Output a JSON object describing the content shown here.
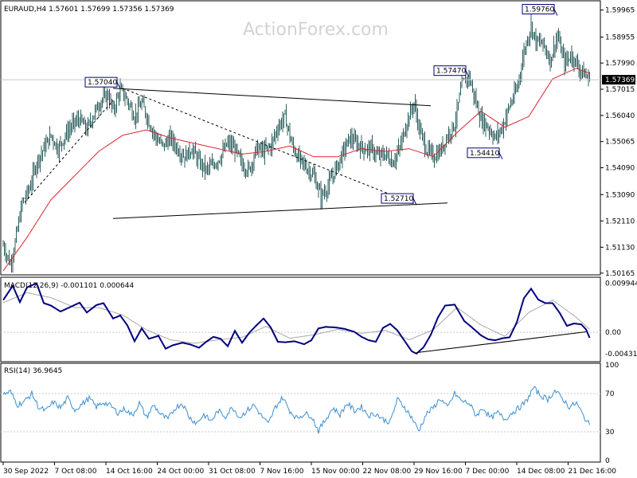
{
  "watermark": "ActionForex.com",
  "colors": {
    "candle": "#2f5f5f",
    "ma": "#d8262f",
    "macd": "#00007f",
    "signal": "#a9a9a9",
    "rsi": "#3b8fd0",
    "annotation": "#00007f",
    "line": "#000000",
    "grid": "#c8c8c8"
  },
  "chart_data": [
    {
      "type": "candlestick",
      "title": "EURAUD,H4",
      "ohlc_header": "1.57601 1.57699 1.57356 1.57369",
      "current_price_label": "1.57369",
      "current_price": 1.57369,
      "ylim": [
        1.5016,
        1.6025
      ],
      "y_ticks": [
        "1.59965",
        "1.58955",
        "1.57990",
        "1.57015",
        "1.56040",
        "1.55065",
        "1.54090",
        "1.53090",
        "1.52110",
        "1.51130",
        "1.50165"
      ],
      "x_ticks": [
        "30 Sep 2022",
        "7 Oct 08:00",
        "14 Oct 16:00",
        "24 Oct 00:00",
        "31 Oct 08:00",
        "7 Nov 16:00",
        "15 Nov 00:00",
        "22 Nov 08:00",
        "29 Nov 16:00",
        "7 Dec 00:00",
        "14 Dec 08:00",
        "21 Dec 16:00"
      ],
      "close_path": [
        [
          0,
          1.512
        ],
        [
          6,
          1.505
        ],
        [
          10,
          1.513
        ],
        [
          16,
          1.528
        ],
        [
          22,
          1.533
        ],
        [
          28,
          1.543
        ],
        [
          34,
          1.548
        ],
        [
          40,
          1.553
        ],
        [
          46,
          1.548
        ],
        [
          52,
          1.553
        ],
        [
          58,
          1.557
        ],
        [
          64,
          1.559
        ],
        [
          70,
          1.555
        ],
        [
          76,
          1.561
        ],
        [
          82,
          1.566
        ],
        [
          88,
          1.568
        ],
        [
          92,
          1.562
        ],
        [
          98,
          1.57
        ],
        [
          104,
          1.566
        ],
        [
          110,
          1.56
        ],
        [
          116,
          1.565
        ],
        [
          122,
          1.558
        ],
        [
          128,
          1.552
        ],
        [
          134,
          1.549
        ],
        [
          140,
          1.552
        ],
        [
          146,
          1.548
        ],
        [
          152,
          1.545
        ],
        [
          158,
          1.548
        ],
        [
          164,
          1.543
        ],
        [
          170,
          1.54
        ],
        [
          176,
          1.542
        ],
        [
          182,
          1.545
        ],
        [
          188,
          1.55
        ],
        [
          194,
          1.548
        ],
        [
          200,
          1.542
        ],
        [
          206,
          1.54
        ],
        [
          212,
          1.548
        ],
        [
          218,
          1.547
        ],
        [
          224,
          1.549
        ],
        [
          230,
          1.556
        ],
        [
          236,
          1.56
        ],
        [
          242,
          1.549
        ],
        [
          248,
          1.544
        ],
        [
          254,
          1.541
        ],
        [
          260,
          1.538
        ],
        [
          266,
          1.53
        ],
        [
          272,
          1.534
        ],
        [
          278,
          1.54
        ],
        [
          284,
          1.546
        ],
        [
          290,
          1.552
        ],
        [
          296,
          1.55
        ],
        [
          302,
          1.548
        ],
        [
          308,
          1.548
        ],
        [
          314,
          1.545
        ],
        [
          320,
          1.546
        ],
        [
          326,
          1.543
        ],
        [
          332,
          1.548
        ],
        [
          338,
          1.558
        ],
        [
          344,
          1.565
        ],
        [
          348,
          1.556
        ],
        [
          354,
          1.548
        ],
        [
          360,
          1.545
        ],
        [
          366,
          1.547
        ],
        [
          372,
          1.553
        ],
        [
          378,
          1.557
        ],
        [
          384,
          1.572
        ],
        [
          390,
          1.575
        ],
        [
          394,
          1.568
        ],
        [
          400,
          1.559
        ],
        [
          406,
          1.556
        ],
        [
          412,
          1.552
        ],
        [
          418,
          1.556
        ],
        [
          424,
          1.564
        ],
        [
          430,
          1.57
        ],
        [
          436,
          1.584
        ],
        [
          442,
          1.594
        ],
        [
          446,
          1.588
        ],
        [
          452,
          1.587
        ],
        [
          458,
          1.581
        ],
        [
          464,
          1.59
        ],
        [
          470,
          1.58
        ],
        [
          476,
          1.583
        ],
        [
          482,
          1.578
        ],
        [
          488,
          1.575
        ],
        [
          491,
          1.5737
        ]
      ],
      "ma_path": [
        [
          0,
          1.5025
        ],
        [
          20,
          1.515
        ],
        [
          40,
          1.529
        ],
        [
          60,
          1.538
        ],
        [
          80,
          1.547
        ],
        [
          100,
          1.553
        ],
        [
          120,
          1.555
        ],
        [
          140,
          1.552
        ],
        [
          160,
          1.55
        ],
        [
          180,
          1.548
        ],
        [
          200,
          1.546
        ],
        [
          220,
          1.547
        ],
        [
          240,
          1.549
        ],
        [
          260,
          1.545
        ],
        [
          280,
          1.545
        ],
        [
          300,
          1.548
        ],
        [
          320,
          1.547
        ],
        [
          340,
          1.548
        ],
        [
          360,
          1.545
        ],
        [
          380,
          1.554
        ],
        [
          400,
          1.562
        ],
        [
          420,
          1.556
        ],
        [
          440,
          1.56
        ],
        [
          460,
          1.574
        ],
        [
          480,
          1.578
        ],
        [
          491,
          1.576
        ]
      ],
      "annotations": [
        {
          "label": "1.57040",
          "bar": 98,
          "price": 1.5704
        },
        {
          "label": "1.52710",
          "bar": 346,
          "price": 1.5271
        },
        {
          "label": "1.57470",
          "bar": 390,
          "price": 1.5747
        },
        {
          "label": "1.54410",
          "bar": 418,
          "price": 1.5441
        },
        {
          "label": "1.59760",
          "bar": 464,
          "price": 1.5976
        }
      ],
      "trendlines": [
        {
          "style": "solid",
          "points": [
            [
              92,
              1.5705
            ],
            [
              358,
              1.564
            ]
          ]
        },
        {
          "style": "solid",
          "points": [
            [
              92,
              1.522
            ],
            [
              372,
              1.5278
            ]
          ]
        },
        {
          "style": "dashed",
          "points": [
            [
              100,
              1.5705
            ],
            [
              346,
              1.5271
            ]
          ]
        },
        {
          "style": "dashed",
          "points": [
            [
              18,
              1.528
            ],
            [
              92,
              1.566
            ]
          ]
        }
      ]
    },
    {
      "type": "line",
      "title": "MACD(12,26,9) -0.001101 0.000644",
      "ylim": [
        -0.0056,
        0.0108
      ],
      "y_ticks": [
        "0.009944",
        "0.00",
        "-0.004313"
      ],
      "macd_path": [
        [
          0,
          0.0065
        ],
        [
          8,
          0.0094
        ],
        [
          14,
          0.0061
        ],
        [
          20,
          0.0091
        ],
        [
          28,
          0.0099
        ],
        [
          34,
          0.0059
        ],
        [
          40,
          0.0054
        ],
        [
          48,
          0.0042
        ],
        [
          56,
          0.0051
        ],
        [
          64,
          0.006
        ],
        [
          70,
          0.004
        ],
        [
          78,
          0.0055
        ],
        [
          84,
          0.0059
        ],
        [
          92,
          0.0028
        ],
        [
          98,
          0.0034
        ],
        [
          104,
          0.0014
        ],
        [
          110,
          -0.0018
        ],
        [
          116,
          0.0008
        ],
        [
          122,
          -0.0013
        ],
        [
          130,
          -0.0007
        ],
        [
          136,
          -0.0033
        ],
        [
          142,
          -0.0026
        ],
        [
          150,
          -0.0021
        ],
        [
          156,
          -0.0024
        ],
        [
          164,
          -0.0031
        ],
        [
          170,
          -0.0019
        ],
        [
          176,
          -0.0009
        ],
        [
          182,
          -0.0013
        ],
        [
          188,
          -0.0028
        ],
        [
          194,
          0.0003
        ],
        [
          200,
          -0.0021
        ],
        [
          206,
          -0.0001
        ],
        [
          212,
          0.0014
        ],
        [
          218,
          0.0028
        ],
        [
          224,
          0.001
        ],
        [
          230,
          -0.0019
        ],
        [
          236,
          -0.002
        ],
        [
          244,
          -0.0018
        ],
        [
          252,
          -0.0024
        ],
        [
          258,
          -0.0016
        ],
        [
          264,
          0.0008
        ],
        [
          270,
          0.0011
        ],
        [
          278,
          0.001
        ],
        [
          286,
          0.0007
        ],
        [
          294,
          0.0001
        ],
        [
          300,
          -0.0009
        ],
        [
          306,
          -0.0016
        ],
        [
          312,
          -0.0019
        ],
        [
          318,
          0.0009
        ],
        [
          324,
          0.0017
        ],
        [
          330,
          0.0004
        ],
        [
          336,
          -0.0017
        ],
        [
          342,
          -0.0038
        ],
        [
          346,
          -0.0043
        ],
        [
          352,
          -0.003
        ],
        [
          358,
          -0.0005
        ],
        [
          364,
          0.003
        ],
        [
          370,
          0.0054
        ],
        [
          378,
          0.0056
        ],
        [
          386,
          0.0023
        ],
        [
          392,
          0.0011
        ],
        [
          400,
          -0.0006
        ],
        [
          406,
          -0.0014
        ],
        [
          412,
          -0.0016
        ],
        [
          418,
          -0.0012
        ],
        [
          424,
          -0.001
        ],
        [
          430,
          0.002
        ],
        [
          436,
          0.0069
        ],
        [
          442,
          0.0088
        ],
        [
          448,
          0.0066
        ],
        [
          454,
          0.0059
        ],
        [
          460,
          0.0059
        ],
        [
          466,
          0.0039
        ],
        [
          472,
          0.0013
        ],
        [
          478,
          0.0018
        ],
        [
          484,
          0.0016
        ],
        [
          488,
          0.0006
        ],
        [
          491,
          -0.0011
        ]
      ],
      "signal_path": [
        [
          0,
          0.006
        ],
        [
          20,
          0.008
        ],
        [
          40,
          0.007
        ],
        [
          60,
          0.005
        ],
        [
          80,
          0.005
        ],
        [
          100,
          0.0035
        ],
        [
          120,
          0.0005
        ],
        [
          140,
          -0.0015
        ],
        [
          160,
          -0.0022
        ],
        [
          180,
          -0.0015
        ],
        [
          200,
          -0.001
        ],
        [
          220,
          0.0012
        ],
        [
          240,
          -0.0012
        ],
        [
          260,
          -0.0005
        ],
        [
          280,
          0.0006
        ],
        [
          300,
          -0.0002
        ],
        [
          320,
          0.0004
        ],
        [
          340,
          -0.0015
        ],
        [
          360,
          0.0005
        ],
        [
          380,
          0.005
        ],
        [
          400,
          0.0015
        ],
        [
          420,
          -0.0008
        ],
        [
          440,
          0.004
        ],
        [
          460,
          0.0065
        ],
        [
          480,
          0.003
        ],
        [
          491,
          0.0006
        ]
      ],
      "trendlines": [
        {
          "style": "solid",
          "points": [
            [
              346,
              -0.0041
            ],
            [
              488,
              0.0001
            ]
          ]
        }
      ]
    },
    {
      "type": "line",
      "title": "RSI(14) 36.9645",
      "ylim": [
        0,
        100
      ],
      "y_ticks": [
        "100",
        "70",
        "30",
        "0"
      ],
      "levels": [
        70,
        30
      ],
      "rsi_path": [
        [
          0,
          69
        ],
        [
          6,
          72
        ],
        [
          12,
          58
        ],
        [
          18,
          62
        ],
        [
          24,
          70
        ],
        [
          30,
          55
        ],
        [
          36,
          52
        ],
        [
          42,
          61
        ],
        [
          48,
          55
        ],
        [
          54,
          65
        ],
        [
          60,
          53
        ],
        [
          66,
          59
        ],
        [
          72,
          65
        ],
        [
          78,
          56
        ],
        [
          84,
          61
        ],
        [
          90,
          57
        ],
        [
          96,
          50
        ],
        [
          102,
          54
        ],
        [
          108,
          47
        ],
        [
          114,
          60
        ],
        [
          120,
          45
        ],
        [
          126,
          58
        ],
        [
          132,
          48
        ],
        [
          138,
          43
        ],
        [
          144,
          55
        ],
        [
          150,
          60
        ],
        [
          156,
          45
        ],
        [
          162,
          39
        ],
        [
          168,
          48
        ],
        [
          174,
          41
        ],
        [
          180,
          52
        ],
        [
          186,
          46
        ],
        [
          192,
          56
        ],
        [
          198,
          45
        ],
        [
          204,
          52
        ],
        [
          210,
          58
        ],
        [
          216,
          47
        ],
        [
          222,
          38
        ],
        [
          228,
          56
        ],
        [
          234,
          66
        ],
        [
          240,
          52
        ],
        [
          246,
          44
        ],
        [
          252,
          49
        ],
        [
          258,
          47
        ],
        [
          264,
          31
        ],
        [
          270,
          43
        ],
        [
          276,
          55
        ],
        [
          282,
          48
        ],
        [
          288,
          60
        ],
        [
          294,
          52
        ],
        [
          300,
          56
        ],
        [
          306,
          47
        ],
        [
          312,
          49
        ],
        [
          318,
          43
        ],
        [
          324,
          40
        ],
        [
          330,
          64
        ],
        [
          336,
          56
        ],
        [
          342,
          45
        ],
        [
          348,
          31
        ],
        [
          354,
          48
        ],
        [
          360,
          55
        ],
        [
          366,
          65
        ],
        [
          372,
          55
        ],
        [
          378,
          70
        ],
        [
          384,
          62
        ],
        [
          390,
          60
        ],
        [
          396,
          47
        ],
        [
          402,
          55
        ],
        [
          408,
          44
        ],
        [
          414,
          50
        ],
        [
          420,
          43
        ],
        [
          426,
          50
        ],
        [
          432,
          55
        ],
        [
          438,
          62
        ],
        [
          444,
          76
        ],
        [
          450,
          68
        ],
        [
          456,
          64
        ],
        [
          462,
          73
        ],
        [
          468,
          65
        ],
        [
          474,
          56
        ],
        [
          480,
          60
        ],
        [
          486,
          46
        ],
        [
          491,
          37
        ]
      ]
    }
  ]
}
